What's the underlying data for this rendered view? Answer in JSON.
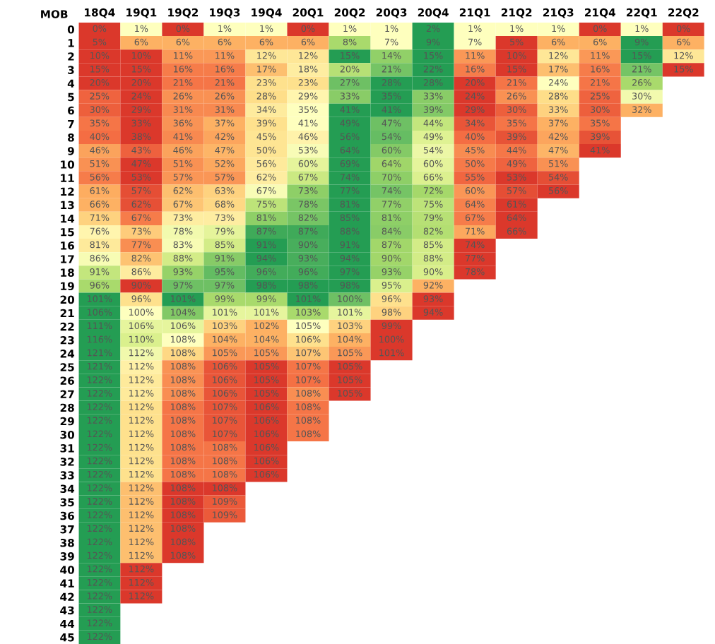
{
  "chart_data": {
    "type": "heatmap",
    "ylabel": "MOB",
    "categories": [
      "18Q4",
      "19Q1",
      "19Q2",
      "19Q3",
      "19Q4",
      "20Q1",
      "20Q2",
      "20Q3",
      "20Q4",
      "21Q1",
      "21Q2",
      "21Q3",
      "21Q4",
      "22Q1",
      "22Q2"
    ],
    "y_categories": [
      "0",
      "1",
      "2",
      "3",
      "4",
      "5",
      "6",
      "7",
      "8",
      "9",
      "10",
      "11",
      "12",
      "13",
      "14",
      "15",
      "16",
      "17",
      "18",
      "19",
      "20",
      "21",
      "22",
      "23",
      "24",
      "25",
      "26",
      "27",
      "28",
      "29",
      "30",
      "31",
      "32",
      "33",
      "34",
      "35",
      "36",
      "37",
      "38",
      "39",
      "40",
      "41",
      "42",
      "43",
      "44",
      "45"
    ],
    "cells": [
      [
        0,
        1,
        0,
        1,
        1,
        0,
        1,
        1,
        2,
        1,
        1,
        1,
        0,
        1,
        0
      ],
      [
        5,
        6,
        6,
        6,
        6,
        6,
        8,
        7,
        9,
        7,
        5,
        6,
        6,
        9,
        6
      ],
      [
        10,
        10,
        11,
        11,
        12,
        12,
        15,
        14,
        15,
        11,
        10,
        12,
        11,
        15,
        12
      ],
      [
        15,
        15,
        16,
        16,
        17,
        18,
        20,
        21,
        22,
        16,
        15,
        17,
        16,
        21,
        15
      ],
      [
        20,
        20,
        21,
        21,
        23,
        23,
        27,
        28,
        28,
        20,
        21,
        24,
        21,
        26,
        null
      ],
      [
        25,
        24,
        26,
        26,
        28,
        29,
        33,
        35,
        33,
        24,
        26,
        28,
        25,
        30,
        null
      ],
      [
        30,
        29,
        31,
        31,
        34,
        35,
        41,
        41,
        39,
        29,
        30,
        33,
        30,
        32,
        null
      ],
      [
        35,
        33,
        36,
        37,
        39,
        41,
        49,
        47,
        44,
        34,
        35,
        37,
        35,
        null,
        null
      ],
      [
        40,
        38,
        41,
        42,
        45,
        46,
        56,
        54,
        49,
        40,
        39,
        42,
        39,
        null,
        null
      ],
      [
        46,
        43,
        46,
        47,
        50,
        53,
        64,
        60,
        54,
        45,
        44,
        47,
        41,
        null,
        null
      ],
      [
        51,
        47,
        51,
        52,
        56,
        60,
        69,
        64,
        60,
        50,
        49,
        51,
        null,
        null,
        null
      ],
      [
        56,
        53,
        57,
        57,
        62,
        67,
        74,
        70,
        66,
        55,
        53,
        54,
        null,
        null,
        null
      ],
      [
        61,
        57,
        62,
        63,
        67,
        73,
        77,
        74,
        72,
        60,
        57,
        56,
        null,
        null,
        null
      ],
      [
        66,
        62,
        67,
        68,
        75,
        78,
        81,
        77,
        75,
        64,
        61,
        null,
        null,
        null,
        null
      ],
      [
        71,
        67,
        73,
        73,
        81,
        82,
        85,
        81,
        79,
        67,
        64,
        null,
        null,
        null,
        null
      ],
      [
        76,
        73,
        78,
        79,
        87,
        87,
        88,
        84,
        82,
        71,
        66,
        null,
        null,
        null,
        null
      ],
      [
        81,
        77,
        83,
        85,
        91,
        90,
        91,
        87,
        85,
        74,
        null,
        null,
        null,
        null,
        null
      ],
      [
        86,
        82,
        88,
        91,
        94,
        93,
        94,
        90,
        88,
        77,
        null,
        null,
        null,
        null,
        null
      ],
      [
        91,
        86,
        93,
        95,
        96,
        96,
        97,
        93,
        90,
        78,
        null,
        null,
        null,
        null,
        null
      ],
      [
        96,
        90,
        97,
        97,
        98,
        98,
        98,
        95,
        92,
        null,
        null,
        null,
        null,
        null,
        null
      ],
      [
        101,
        96,
        101,
        99,
        99,
        101,
        100,
        96,
        93,
        null,
        null,
        null,
        null,
        null,
        null
      ],
      [
        106,
        100,
        104,
        101,
        101,
        103,
        101,
        98,
        94,
        null,
        null,
        null,
        null,
        null,
        null
      ],
      [
        111,
        106,
        106,
        103,
        102,
        105,
        103,
        99,
        null,
        null,
        null,
        null,
        null,
        null,
        null
      ],
      [
        116,
        110,
        108,
        104,
        104,
        106,
        104,
        100,
        null,
        null,
        null,
        null,
        null,
        null,
        null
      ],
      [
        121,
        112,
        108,
        105,
        105,
        107,
        105,
        101,
        null,
        null,
        null,
        null,
        null,
        null,
        null
      ],
      [
        121,
        112,
        108,
        106,
        105,
        107,
        105,
        null,
        null,
        null,
        null,
        null,
        null,
        null,
        null
      ],
      [
        122,
        112,
        108,
        106,
        105,
        107,
        105,
        null,
        null,
        null,
        null,
        null,
        null,
        null,
        null
      ],
      [
        122,
        112,
        108,
        106,
        105,
        108,
        105,
        null,
        null,
        null,
        null,
        null,
        null,
        null,
        null
      ],
      [
        122,
        112,
        108,
        107,
        106,
        108,
        null,
        null,
        null,
        null,
        null,
        null,
        null,
        null,
        null
      ],
      [
        122,
        112,
        108,
        107,
        106,
        108,
        null,
        null,
        null,
        null,
        null,
        null,
        null,
        null,
        null
      ],
      [
        122,
        112,
        108,
        107,
        106,
        108,
        null,
        null,
        null,
        null,
        null,
        null,
        null,
        null,
        null
      ],
      [
        122,
        112,
        108,
        108,
        106,
        null,
        null,
        null,
        null,
        null,
        null,
        null,
        null,
        null,
        null
      ],
      [
        122,
        112,
        108,
        108,
        106,
        null,
        null,
        null,
        null,
        null,
        null,
        null,
        null,
        null,
        null
      ],
      [
        122,
        112,
        108,
        108,
        106,
        null,
        null,
        null,
        null,
        null,
        null,
        null,
        null,
        null,
        null
      ],
      [
        122,
        112,
        108,
        108,
        null,
        null,
        null,
        null,
        null,
        null,
        null,
        null,
        null,
        null,
        null
      ],
      [
        122,
        112,
        108,
        109,
        null,
        null,
        null,
        null,
        null,
        null,
        null,
        null,
        null,
        null,
        null
      ],
      [
        122,
        112,
        108,
        109,
        null,
        null,
        null,
        null,
        null,
        null,
        null,
        null,
        null,
        null,
        null
      ],
      [
        122,
        112,
        108,
        null,
        null,
        null,
        null,
        null,
        null,
        null,
        null,
        null,
        null,
        null,
        null
      ],
      [
        122,
        112,
        108,
        null,
        null,
        null,
        null,
        null,
        null,
        null,
        null,
        null,
        null,
        null,
        null
      ],
      [
        122,
        112,
        108,
        null,
        null,
        null,
        null,
        null,
        null,
        null,
        null,
        null,
        null,
        null,
        null
      ],
      [
        122,
        112,
        null,
        null,
        null,
        null,
        null,
        null,
        null,
        null,
        null,
        null,
        null,
        null,
        null
      ],
      [
        122,
        112,
        null,
        null,
        null,
        null,
        null,
        null,
        null,
        null,
        null,
        null,
        null,
        null,
        null
      ],
      [
        122,
        112,
        null,
        null,
        null,
        null,
        null,
        null,
        null,
        null,
        null,
        null,
        null,
        null,
        null
      ],
      [
        122,
        null,
        null,
        null,
        null,
        null,
        null,
        null,
        null,
        null,
        null,
        null,
        null,
        null,
        null
      ],
      [
        122,
        null,
        null,
        null,
        null,
        null,
        null,
        null,
        null,
        null,
        null,
        null,
        null,
        null,
        null
      ],
      [
        122,
        null,
        null,
        null,
        null,
        null,
        null,
        null,
        null,
        null,
        null,
        null,
        null,
        null,
        null
      ]
    ],
    "cell_labels": [
      [
        "0%",
        "1%",
        "0%",
        "1%",
        "1%",
        "0%",
        "1%",
        "1%",
        "2%",
        "1%",
        "1%",
        "1%",
        "0%",
        "1%",
        "0%"
      ],
      [
        "5%",
        "6%",
        "6%",
        "6%",
        "6%",
        "6%",
        "8%",
        "7%",
        "9%",
        "7%",
        "5%",
        "6%",
        "6%",
        "9%",
        "6%"
      ],
      [
        "10%",
        "10%",
        "11%",
        "11%",
        "12%",
        "12%",
        "15%",
        "14%",
        "15%",
        "11%",
        "10%",
        "12%",
        "11%",
        "15%",
        "12%"
      ],
      [
        "15%",
        "15%",
        "16%",
        "16%",
        "17%",
        "18%",
        "20%",
        "21%",
        "22%",
        "16%",
        "15%",
        "17%",
        "16%",
        "21%",
        "15%"
      ],
      [
        "20%",
        "20%",
        "21%",
        "21%",
        "23%",
        "23%",
        "27%",
        "28%",
        "28%",
        "20%",
        "21%",
        "24%",
        "21%",
        "26%",
        null
      ],
      [
        "25%",
        "24%",
        "26%",
        "26%",
        "28%",
        "29%",
        "33%",
        "35%",
        "33%",
        "24%",
        "26%",
        "28%",
        "25%",
        "30%",
        null
      ],
      [
        "30%",
        "29%",
        "31%",
        "31%",
        "34%",
        "35%",
        "41%",
        "41%",
        "39%",
        "29%",
        "30%",
        "33%",
        "30%",
        "32%",
        null
      ],
      [
        "35%",
        "33%",
        "36%",
        "37%",
        "39%",
        "41%",
        "49%",
        "47%",
        "44%",
        "34%",
        "35%",
        "37%",
        "35%",
        null,
        null
      ],
      [
        "40%",
        "38%",
        "41%",
        "42%",
        "45%",
        "46%",
        "56%",
        "54%",
        "49%",
        "40%",
        "39%",
        "42%",
        "39%",
        null,
        null
      ],
      [
        "46%",
        "43%",
        "46%",
        "47%",
        "50%",
        "53%",
        "64%",
        "60%",
        "54%",
        "45%",
        "44%",
        "47%",
        "41%",
        null,
        null
      ],
      [
        "51%",
        "47%",
        "51%",
        "52%",
        "56%",
        "60%",
        "69%",
        "64%",
        "60%",
        "50%",
        "49%",
        "51%",
        null,
        null,
        null
      ],
      [
        "56%",
        "53%",
        "57%",
        "57%",
        "62%",
        "67%",
        "74%",
        "70%",
        "66%",
        "55%",
        "53%",
        "54%",
        null,
        null,
        null
      ],
      [
        "61%",
        "57%",
        "62%",
        "63%",
        "67%",
        "73%",
        "77%",
        "74%",
        "72%",
        "60%",
        "57%",
        "56%",
        null,
        null,
        null
      ],
      [
        "66%",
        "62%",
        "67%",
        "68%",
        "75%",
        "78%",
        "81%",
        "77%",
        "75%",
        "64%",
        "61%",
        null,
        null,
        null,
        null
      ],
      [
        "71%",
        "67%",
        "73%",
        "73%",
        "81%",
        "82%",
        "85%",
        "81%",
        "79%",
        "67%",
        "64%",
        null,
        null,
        null,
        null
      ],
      [
        "76%",
        "73%",
        "78%",
        "79%",
        "87%",
        "87%",
        "88%",
        "84%",
        "82%",
        "71%",
        "66%",
        null,
        null,
        null,
        null
      ],
      [
        "81%",
        "77%",
        "83%",
        "85%",
        "91%",
        "90%",
        "91%",
        "87%",
        "85%",
        "74%",
        null,
        null,
        null,
        null,
        null
      ],
      [
        "86%",
        "82%",
        "88%",
        "91%",
        "94%",
        "93%",
        "94%",
        "90%",
        "88%",
        "77%",
        null,
        null,
        null,
        null,
        null
      ],
      [
        "91%",
        "86%",
        "93%",
        "95%",
        "96%",
        "96%",
        "97%",
        "93%",
        "90%",
        "78%",
        null,
        null,
        null,
        null,
        null
      ],
      [
        "96%",
        "90%",
        "97%",
        "97%",
        "98%",
        "98%",
        "98%",
        "95%",
        "92%",
        null,
        null,
        null,
        null,
        null,
        null
      ],
      [
        "101%",
        "96%",
        "101%",
        "99%",
        "99%",
        "101%",
        "100%",
        "96%",
        "93%",
        null,
        null,
        null,
        null,
        null,
        null
      ],
      [
        "106%",
        "100%",
        "104%",
        "101%",
        "101%",
        "103%",
        "101%",
        "98%",
        "94%",
        null,
        null,
        null,
        null,
        null,
        null
      ],
      [
        "111%",
        "106%",
        "106%",
        "103%",
        "102%",
        "105%",
        "103%",
        "99%",
        null,
        null,
        null,
        null,
        null,
        null,
        null
      ],
      [
        "116%",
        "110%",
        "108%",
        "104%",
        "104%",
        "106%",
        "104%",
        "100%",
        null,
        null,
        null,
        null,
        null,
        null,
        null
      ],
      [
        "121%",
        "112%",
        "108%",
        "105%",
        "105%",
        "107%",
        "105%",
        "101%",
        null,
        null,
        null,
        null,
        null,
        null,
        null
      ],
      [
        "121%",
        "112%",
        "108%",
        "106%",
        "105%",
        "107%",
        "105%",
        null,
        null,
        null,
        null,
        null,
        null,
        null,
        null
      ],
      [
        "122%",
        "112%",
        "108%",
        "106%",
        "105%",
        "107%",
        "105%",
        null,
        null,
        null,
        null,
        null,
        null,
        null,
        null
      ],
      [
        "122%",
        "112%",
        "108%",
        "106%",
        "105%",
        "108%",
        "105%",
        null,
        null,
        null,
        null,
        null,
        null,
        null,
        null
      ],
      [
        "122%",
        "112%",
        "108%",
        "107%",
        "106%",
        "108%",
        null,
        null,
        null,
        null,
        null,
        null,
        null,
        null,
        null
      ],
      [
        "122%",
        "112%",
        "108%",
        "107%",
        "106%",
        "108%",
        null,
        null,
        null,
        null,
        null,
        null,
        null,
        null,
        null
      ],
      [
        "122%",
        "112%",
        "108%",
        "107%",
        "106%",
        "108%",
        null,
        null,
        null,
        null,
        null,
        null,
        null,
        null,
        null
      ],
      [
        "122%",
        "112%",
        "108%",
        "108%",
        "106%",
        null,
        null,
        null,
        null,
        null,
        null,
        null,
        null,
        null,
        null
      ],
      [
        "122%",
        "112%",
        "108%",
        "108%",
        "106%",
        null,
        null,
        null,
        null,
        null,
        null,
        null,
        null,
        null,
        null
      ],
      [
        "122%",
        "112%",
        "108%",
        "108%",
        "106%",
        null,
        null,
        null,
        null,
        null,
        null,
        null,
        null,
        null,
        null
      ],
      [
        "122%",
        "112%",
        "108%",
        "108%",
        null,
        null,
        null,
        null,
        null,
        null,
        null,
        null,
        null,
        null,
        null
      ],
      [
        "122%",
        "112%",
        "108%",
        "109%",
        null,
        null,
        null,
        null,
        null,
        null,
        null,
        null,
        null,
        null,
        null
      ],
      [
        "122%",
        "112%",
        "108%",
        "109%",
        null,
        null,
        null,
        null,
        null,
        null,
        null,
        null,
        null,
        null,
        null
      ],
      [
        "122%",
        "112%",
        "108%",
        null,
        null,
        null,
        null,
        null,
        null,
        null,
        null,
        null,
        null,
        null,
        null
      ],
      [
        "122%",
        "112%",
        "108%",
        null,
        null,
        null,
        null,
        null,
        null,
        null,
        null,
        null,
        null,
        null,
        null
      ],
      [
        "122%",
        "112%",
        "108%",
        null,
        null,
        null,
        null,
        null,
        null,
        null,
        null,
        null,
        null,
        null,
        null
      ],
      [
        "122%",
        "112%",
        null,
        null,
        null,
        null,
        null,
        null,
        null,
        null,
        null,
        null,
        null,
        null,
        null
      ],
      [
        "122%",
        "112%",
        null,
        null,
        null,
        null,
        null,
        null,
        null,
        null,
        null,
        null,
        null,
        null,
        null
      ],
      [
        "122%",
        "112%",
        null,
        null,
        null,
        null,
        null,
        null,
        null,
        null,
        null,
        null,
        null,
        null,
        null
      ],
      [
        "122%",
        null,
        null,
        null,
        null,
        null,
        null,
        null,
        null,
        null,
        null,
        null,
        null,
        null,
        null
      ],
      [
        "122%",
        null,
        null,
        null,
        null,
        null,
        null,
        null,
        null,
        null,
        null,
        null,
        null,
        null,
        null
      ],
      [
        "122%",
        null,
        null,
        null,
        null,
        null,
        null,
        null,
        null,
        null,
        null,
        null,
        null,
        null,
        null
      ]
    ]
  }
}
